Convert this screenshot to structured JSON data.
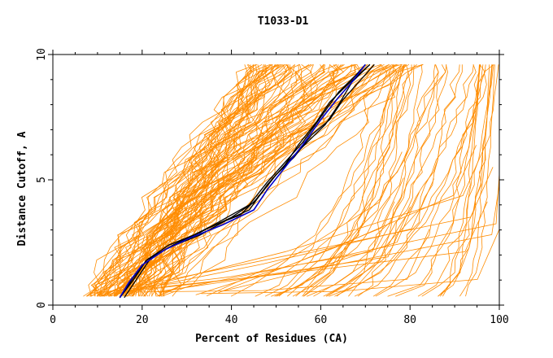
{
  "chart_data": {
    "type": "line",
    "title": "T1033-D1",
    "xlabel": "Percent of Residues (CA)",
    "ylabel": "Distance Cutoff, A",
    "xlim": [
      0,
      100
    ],
    "ylim": [
      0,
      10
    ],
    "xticks": [
      "0",
      "20",
      "40",
      "60",
      "80",
      "100"
    ],
    "yticks": [
      "0",
      "5",
      "10"
    ],
    "grid": false,
    "colors": {
      "background_models": "#ff8c00",
      "highlight_models": "#000000",
      "reference_model": "#0000cc",
      "axes": "#000000"
    },
    "highlight_series": [
      {
        "color": "black",
        "points": [
          [
            15,
            0.3
          ],
          [
            18,
            1
          ],
          [
            21,
            1.8
          ],
          [
            26,
            2.3
          ],
          [
            33,
            2.8
          ],
          [
            39,
            3.4
          ],
          [
            44,
            3.8
          ],
          [
            48,
            4.8
          ],
          [
            52,
            5.6
          ],
          [
            55,
            6.4
          ],
          [
            59,
            7.3
          ],
          [
            62,
            8.1
          ],
          [
            66,
            8.8
          ],
          [
            71,
            9.6
          ]
        ]
      },
      {
        "color": "black",
        "points": [
          [
            16,
            0.3
          ],
          [
            19,
            1.1
          ],
          [
            22,
            1.9
          ],
          [
            27,
            2.4
          ],
          [
            34,
            3.0
          ],
          [
            40,
            3.5
          ],
          [
            45,
            4.1
          ],
          [
            49,
            5.0
          ],
          [
            53,
            5.8
          ],
          [
            57,
            6.5
          ],
          [
            61,
            7.2
          ],
          [
            64,
            8.0
          ],
          [
            67,
            8.9
          ],
          [
            71,
            9.6
          ]
        ]
      },
      {
        "color": "black",
        "points": [
          [
            15,
            0.3
          ],
          [
            18,
            1
          ],
          [
            21,
            1.8
          ],
          [
            27,
            2.4
          ],
          [
            35,
            3.1
          ],
          [
            42,
            3.6
          ],
          [
            46,
            4.3
          ],
          [
            50,
            5.2
          ],
          [
            54,
            5.9
          ],
          [
            58,
            6.8
          ],
          [
            62,
            7.4
          ],
          [
            65,
            8.2
          ],
          [
            68,
            8.8
          ],
          [
            72,
            9.6
          ]
        ]
      },
      {
        "color": "black",
        "points": [
          [
            15,
            0.3
          ],
          [
            18,
            1.1
          ],
          [
            21,
            1.8
          ],
          [
            26,
            2.4
          ],
          [
            33,
            2.9
          ],
          [
            39,
            3.5
          ],
          [
            44,
            4.0
          ],
          [
            48,
            4.9
          ],
          [
            52,
            5.7
          ],
          [
            56,
            6.5
          ],
          [
            60,
            7.5
          ],
          [
            64,
            8.5
          ],
          [
            68,
            9.2
          ],
          [
            70,
            9.6
          ]
        ]
      },
      {
        "color": "blue",
        "points": [
          [
            15,
            0.3
          ],
          [
            17,
            0.9
          ],
          [
            20,
            1.6
          ],
          [
            25,
            2.2
          ],
          [
            31,
            2.7
          ],
          [
            38,
            3.2
          ],
          [
            45,
            3.8
          ],
          [
            48,
            4.6
          ],
          [
            52,
            5.5
          ],
          [
            56,
            6.4
          ],
          [
            60,
            7.4
          ],
          [
            64,
            8.3
          ],
          [
            67,
            8.9
          ],
          [
            70,
            9.6
          ]
        ]
      }
    ]
  }
}
